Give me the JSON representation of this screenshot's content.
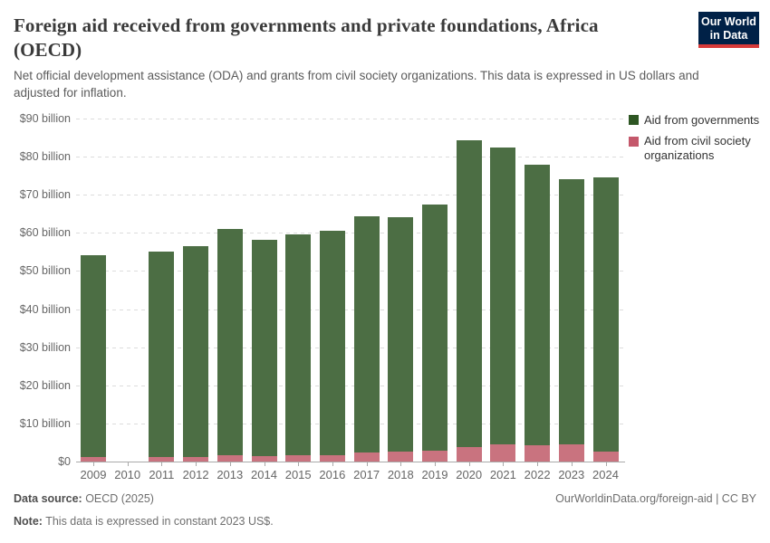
{
  "header": {
    "title": "Foreign aid received from governments and private foundations, Africa (OECD)",
    "subtitle": "Net official development assistance (ODA) and grants from civil society organizations. This data is expressed in US dollars and adjusted for inflation.",
    "logo": {
      "line1": "Our World",
      "line2": "in Data",
      "bg_color": "#002147",
      "accent_color": "#d73a39"
    }
  },
  "legend": {
    "items": [
      {
        "label": "Aid from governments",
        "color": "#2e5623"
      },
      {
        "label": "Aid from civil society organizations",
        "color": "#c4586b"
      }
    ]
  },
  "chart_data": {
    "type": "bar",
    "stacked": true,
    "title": "Foreign aid received from governments and private foundations, Africa (OECD)",
    "xlabel": "",
    "ylabel": "",
    "ylim": [
      0,
      90
    ],
    "grid": "dashed-horizontal",
    "legend_position": "right",
    "unit": "US$ billion (constant 2023 US$)",
    "categories": [
      "2009",
      "2010",
      "2011",
      "2012",
      "2013",
      "2014",
      "2015",
      "2016",
      "2017",
      "2018",
      "2019",
      "2020",
      "2021",
      "2022",
      "2023",
      "2024"
    ],
    "yticks": [
      {
        "value": 0,
        "label": "$0"
      },
      {
        "value": 10,
        "label": "$10 billion"
      },
      {
        "value": 20,
        "label": "$20 billion"
      },
      {
        "value": 30,
        "label": "$30 billion"
      },
      {
        "value": 40,
        "label": "$40 billion"
      },
      {
        "value": 50,
        "label": "$50 billion"
      },
      {
        "value": 60,
        "label": "$60 billion"
      },
      {
        "value": 70,
        "label": "$70 billion"
      },
      {
        "value": 80,
        "label": "$80 billion"
      },
      {
        "value": 90,
        "label": "$90 billion"
      }
    ],
    "series": [
      {
        "id": "civil_society",
        "name": "Aid from civil society organizations",
        "legend_color": "#c4586b",
        "bar_color": "#c9737f",
        "values": [
          1.3,
          null,
          1.3,
          1.1,
          1.6,
          1.4,
          1.6,
          1.7,
          2.4,
          2.6,
          2.9,
          3.8,
          4.4,
          4.3,
          4.6,
          2.6
        ]
      },
      {
        "id": "governments",
        "name": "Aid from governments",
        "legend_color": "#2e5623",
        "bar_color": "#4c6e44",
        "values": [
          52.9,
          null,
          53.8,
          55.4,
          59.5,
          56.8,
          58.0,
          58.9,
          62.0,
          61.4,
          64.5,
          80.4,
          78.0,
          73.6,
          69.6,
          71.9
        ]
      }
    ],
    "stack_order_bottom_to_top": [
      "civil_society",
      "governments"
    ]
  },
  "footer": {
    "datasource_label": "Data source:",
    "datasource_value": " OECD (2025)",
    "note_label": "Note:",
    "note_value": " This data is expressed in constant 2023 US$.",
    "credit": "OurWorldinData.org/foreign-aid | CC BY"
  }
}
